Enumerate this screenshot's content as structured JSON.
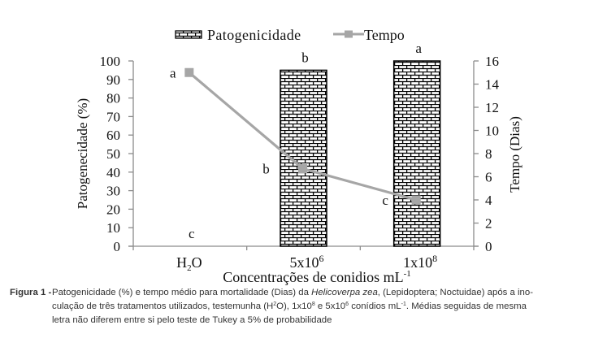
{
  "chart_data": {
    "type": "bar+line",
    "legend_position": "top-center",
    "categories": [
      {
        "base": "H",
        "sub": "2",
        "tail": "O"
      },
      {
        "base": "5x10",
        "sup": "6"
      },
      {
        "base": "1x10",
        "sup": "8"
      }
    ],
    "series": [
      {
        "name": "Patogenicidade",
        "type": "bar",
        "axis": "left",
        "values": [
          0,
          95,
          100
        ],
        "letters": [
          "c",
          "b",
          "a"
        ]
      },
      {
        "name": "Tempo",
        "type": "line",
        "axis": "right",
        "values": [
          15,
          6.7,
          4
        ],
        "letters": [
          "a",
          "b",
          "c"
        ]
      }
    ],
    "ylabel": "Patogenecidade (%)",
    "y2label": "Tempo (Dias)",
    "xlabel": {
      "text": "Concentrações de conidios mL",
      "sup": "-1"
    },
    "ylim": [
      0,
      100
    ],
    "y2lim": [
      0,
      16
    ],
    "yticks": [
      0,
      10,
      20,
      30,
      40,
      50,
      60,
      70,
      80,
      90,
      100
    ],
    "y2ticks": [
      0,
      2,
      4,
      6,
      8,
      10,
      12,
      14,
      16
    ],
    "colors": {
      "line": "#a6a6a6",
      "axis": "#8c8c8c",
      "bar_border": "#000000",
      "bar_fill": "#ffffff"
    }
  },
  "caption": {
    "label": "Figura 1 -",
    "line1_a": "Patogenicidade (%) e tempo médio para mortalidade (Dias) da ",
    "line1_species": "Helicoverpa zea",
    "line1_b": ", (Lepidoptera; Noctuidae) após a ino-",
    "line2_a": "culação de três tratamentos utilizados, testemunha (H",
    "line2_sup1": "2",
    "line2_b": "O), 1x10",
    "line2_sup2": "8",
    "line2_c": " e 5x10",
    "line2_sup3": "6",
    "line2_d": " conídios mL",
    "line2_sup4": "-1",
    "line2_e": ". Médias seguidas de mesma",
    "line3": "letra não diferem entre si pelo teste de Tukey a 5% de probabilidade"
  }
}
